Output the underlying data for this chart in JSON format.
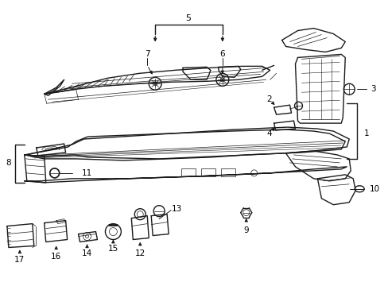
{
  "bg_color": "#ffffff",
  "line_color": "#1a1a1a",
  "lw_main": 1.0,
  "lw_thin": 0.5,
  "lw_detail": 0.4,
  "label_fontsize": 7.5,
  "fig_w": 4.89,
  "fig_h": 3.6,
  "dpi": 100
}
